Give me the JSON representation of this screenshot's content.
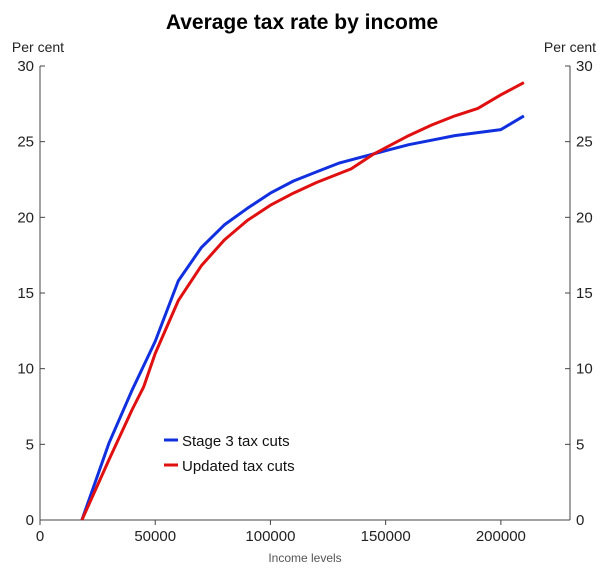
{
  "chart_data": {
    "type": "line",
    "title": "Average tax rate by income",
    "xlabel": "Income levels",
    "ylabel_left": "Per cent",
    "ylabel_right": "Per cent",
    "xlim": [
      0,
      230000
    ],
    "ylim": [
      0,
      30
    ],
    "x_ticks": [
      0,
      50000,
      100000,
      150000,
      200000
    ],
    "x_tick_labels": [
      "0",
      "50000",
      "100000",
      "150000",
      "200000"
    ],
    "y_ticks": [
      0,
      5,
      10,
      15,
      20,
      25,
      30
    ],
    "y_tick_labels": [
      "0",
      "5",
      "10",
      "15",
      "20",
      "25",
      "30"
    ],
    "grid": false,
    "legend_position": "bottom-left",
    "series": [
      {
        "name": "Stage 3 tax cuts",
        "color": "#1030e0",
        "x": [
          18200,
          30000,
          40000,
          50000,
          60000,
          70000,
          80000,
          90000,
          100000,
          110000,
          120000,
          130000,
          140000,
          150000,
          160000,
          170000,
          180000,
          190000,
          200000,
          210000
        ],
        "values": [
          0.0,
          5.1,
          8.6,
          11.8,
          15.8,
          18.0,
          19.5,
          20.6,
          21.6,
          22.4,
          23.0,
          23.6,
          24.0,
          24.4,
          24.8,
          25.1,
          25.4,
          25.6,
          25.8,
          26.7
        ]
      },
      {
        "name": "Updated tax cuts",
        "color": "#e01010",
        "x": [
          18200,
          30000,
          40000,
          45000,
          50000,
          60000,
          70000,
          80000,
          90000,
          100000,
          110000,
          120000,
          135000,
          145000,
          150000,
          160000,
          170000,
          180000,
          190000,
          200000,
          210000
        ],
        "values": [
          0.0,
          4.0,
          7.3,
          8.8,
          11.0,
          14.5,
          16.8,
          18.5,
          19.8,
          20.8,
          21.6,
          22.3,
          23.2,
          24.2,
          24.6,
          25.4,
          26.1,
          26.7,
          27.2,
          28.1,
          28.9
        ]
      }
    ]
  }
}
